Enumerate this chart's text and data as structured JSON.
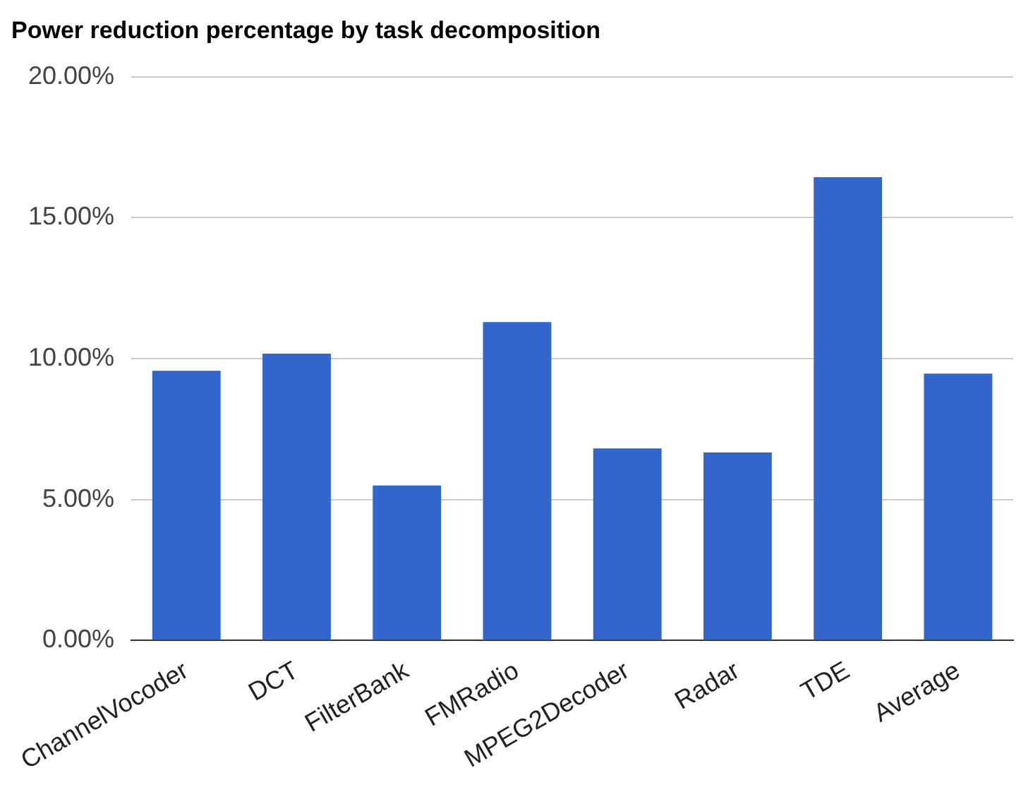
{
  "chart_data": {
    "type": "bar",
    "title": "Power reduction percentage by task decomposition",
    "categories": [
      "ChannelVocoder",
      "DCT",
      "FilterBank",
      "FMRadio",
      "MPEG2Decoder",
      "Radar",
      "TDE",
      "Average"
    ],
    "values": [
      9.57,
      10.18,
      5.5,
      11.3,
      6.82,
      6.67,
      16.44,
      9.47
    ],
    "color": "#3366cc",
    "ylim": [
      0,
      20
    ],
    "yticks": [
      {
        "value": 0,
        "label": "0.00%"
      },
      {
        "value": 5,
        "label": "5.00%"
      },
      {
        "value": 10,
        "label": "10.00%"
      },
      {
        "value": 15,
        "label": "15.00%"
      },
      {
        "value": 20,
        "label": "20.00%"
      }
    ],
    "grid": "y",
    "legend": false
  }
}
